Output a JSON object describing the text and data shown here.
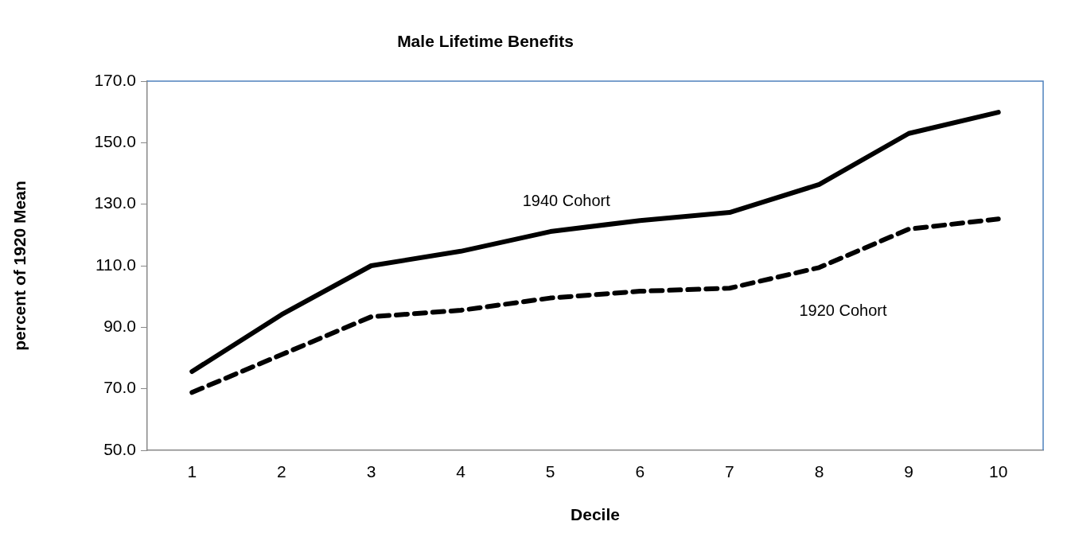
{
  "chart_data": {
    "type": "line",
    "title": "Male Lifetime Benefits",
    "xlabel": "Decile",
    "ylabel": "percent of 1920 Mean",
    "categories": [
      "1",
      "2",
      "3",
      "4",
      "5",
      "6",
      "7",
      "8",
      "9",
      "10"
    ],
    "series": [
      {
        "name": "1940 Cohort",
        "color": "#000000",
        "line_style": "solid",
        "values": [
          75.6,
          94.1,
          110.0,
          114.7,
          121.1,
          124.7,
          127.3,
          136.4,
          153.0,
          159.9
        ]
      },
      {
        "name": "1920 Cohort",
        "color": "#000000",
        "line_style": "dashed",
        "values": [
          68.8,
          81.1,
          93.4,
          95.5,
          99.5,
          101.7,
          102.7,
          109.4,
          121.9,
          125.2
        ]
      }
    ],
    "ylim": [
      50,
      170
    ],
    "yticks": [
      {
        "value": 50,
        "label": "50.0"
      },
      {
        "value": 70,
        "label": "70.0"
      },
      {
        "value": 90,
        "label": "90.0"
      },
      {
        "value": 110,
        "label": "110.0"
      },
      {
        "value": 130,
        "label": "130.0"
      },
      {
        "value": 150,
        "label": "150.0"
      },
      {
        "value": 170,
        "label": "170.0"
      }
    ],
    "grid": false,
    "legend": false,
    "marker": "none"
  }
}
